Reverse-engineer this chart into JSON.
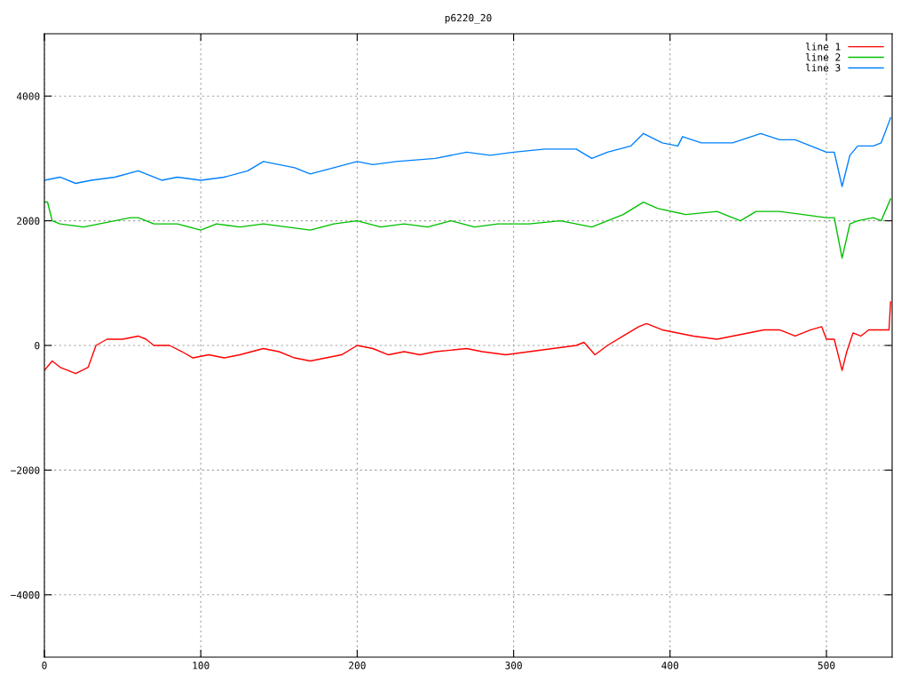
{
  "chart_data": {
    "type": "line",
    "title": "p6220_20",
    "xlim": [
      0,
      542
    ],
    "xticks": [
      0,
      100,
      200,
      300,
      400,
      500
    ],
    "ylim": [
      -5000,
      5000
    ],
    "yticks": [
      -4000,
      -2000,
      0,
      2000,
      4000
    ],
    "grid": true,
    "legend": "top right",
    "line_style": "solid",
    "marker": "none",
    "series": [
      {
        "name": "line 1",
        "color": "#ff0000",
        "x": [
          0,
          5,
          10,
          20,
          28,
          33,
          40,
          50,
          60,
          65,
          70,
          80,
          88,
          95,
          105,
          115,
          125,
          140,
          150,
          160,
          170,
          180,
          190,
          200,
          210,
          220,
          230,
          240,
          250,
          270,
          280,
          295,
          310,
          325,
          340,
          345,
          352,
          360,
          370,
          380,
          385,
          395,
          405,
          415,
          430,
          440,
          450,
          460,
          470,
          480,
          490,
          497,
          500,
          505,
          510,
          513,
          517,
          522,
          527,
          540,
          541
        ],
        "values": [
          -400,
          -250,
          -350,
          -450,
          -350,
          0,
          100,
          100,
          150,
          100,
          0,
          0,
          -100,
          -200,
          -150,
          -200,
          -150,
          -50,
          -100,
          -200,
          -250,
          -200,
          -150,
          0,
          -50,
          -150,
          -100,
          -150,
          -100,
          -50,
          -100,
          -150,
          -100,
          -50,
          0,
          50,
          -150,
          0,
          150,
          300,
          350,
          250,
          200,
          150,
          100,
          150,
          200,
          250,
          250,
          150,
          250,
          300,
          100,
          100,
          -400,
          -100,
          200,
          150,
          250,
          250,
          700
        ]
      },
      {
        "name": "line 2",
        "color": "#00c000",
        "x": [
          0,
          2,
          5,
          10,
          25,
          35,
          55,
          60,
          70,
          85,
          100,
          110,
          125,
          140,
          155,
          170,
          185,
          200,
          215,
          230,
          245,
          260,
          275,
          290,
          310,
          330,
          350,
          360,
          370,
          383,
          392,
          410,
          430,
          445,
          455,
          470,
          485,
          500,
          505,
          510,
          515,
          520,
          530,
          535,
          541
        ],
        "values": [
          2300,
          2300,
          2000,
          1950,
          1900,
          1950,
          2050,
          2050,
          1950,
          1950,
          1850,
          1950,
          1900,
          1950,
          1900,
          1850,
          1950,
          2000,
          1900,
          1950,
          1900,
          2000,
          1900,
          1950,
          1950,
          2000,
          1900,
          2000,
          2100,
          2300,
          2200,
          2100,
          2150,
          2000,
          2150,
          2150,
          2100,
          2050,
          2050,
          1400,
          1950,
          2000,
          2050,
          2000,
          2350
        ]
      },
      {
        "name": "line 3",
        "color": "#0080ff",
        "x": [
          0,
          10,
          20,
          30,
          45,
          60,
          75,
          85,
          100,
          115,
          130,
          140,
          160,
          170,
          185,
          200,
          210,
          225,
          250,
          270,
          285,
          300,
          320,
          340,
          350,
          360,
          375,
          383,
          395,
          405,
          408,
          420,
          440,
          458,
          470,
          480,
          490,
          500,
          505,
          510,
          515,
          520,
          530,
          535,
          541
        ],
        "values": [
          2650,
          2700,
          2600,
          2650,
          2700,
          2800,
          2650,
          2700,
          2650,
          2700,
          2800,
          2950,
          2850,
          2750,
          2850,
          2950,
          2900,
          2950,
          3000,
          3100,
          3050,
          3100,
          3150,
          3150,
          3000,
          3100,
          3200,
          3400,
          3250,
          3200,
          3350,
          3250,
          3250,
          3400,
          3300,
          3300,
          3200,
          3100,
          3100,
          2550,
          3050,
          3200,
          3200,
          3250,
          3650
        ]
      }
    ]
  }
}
